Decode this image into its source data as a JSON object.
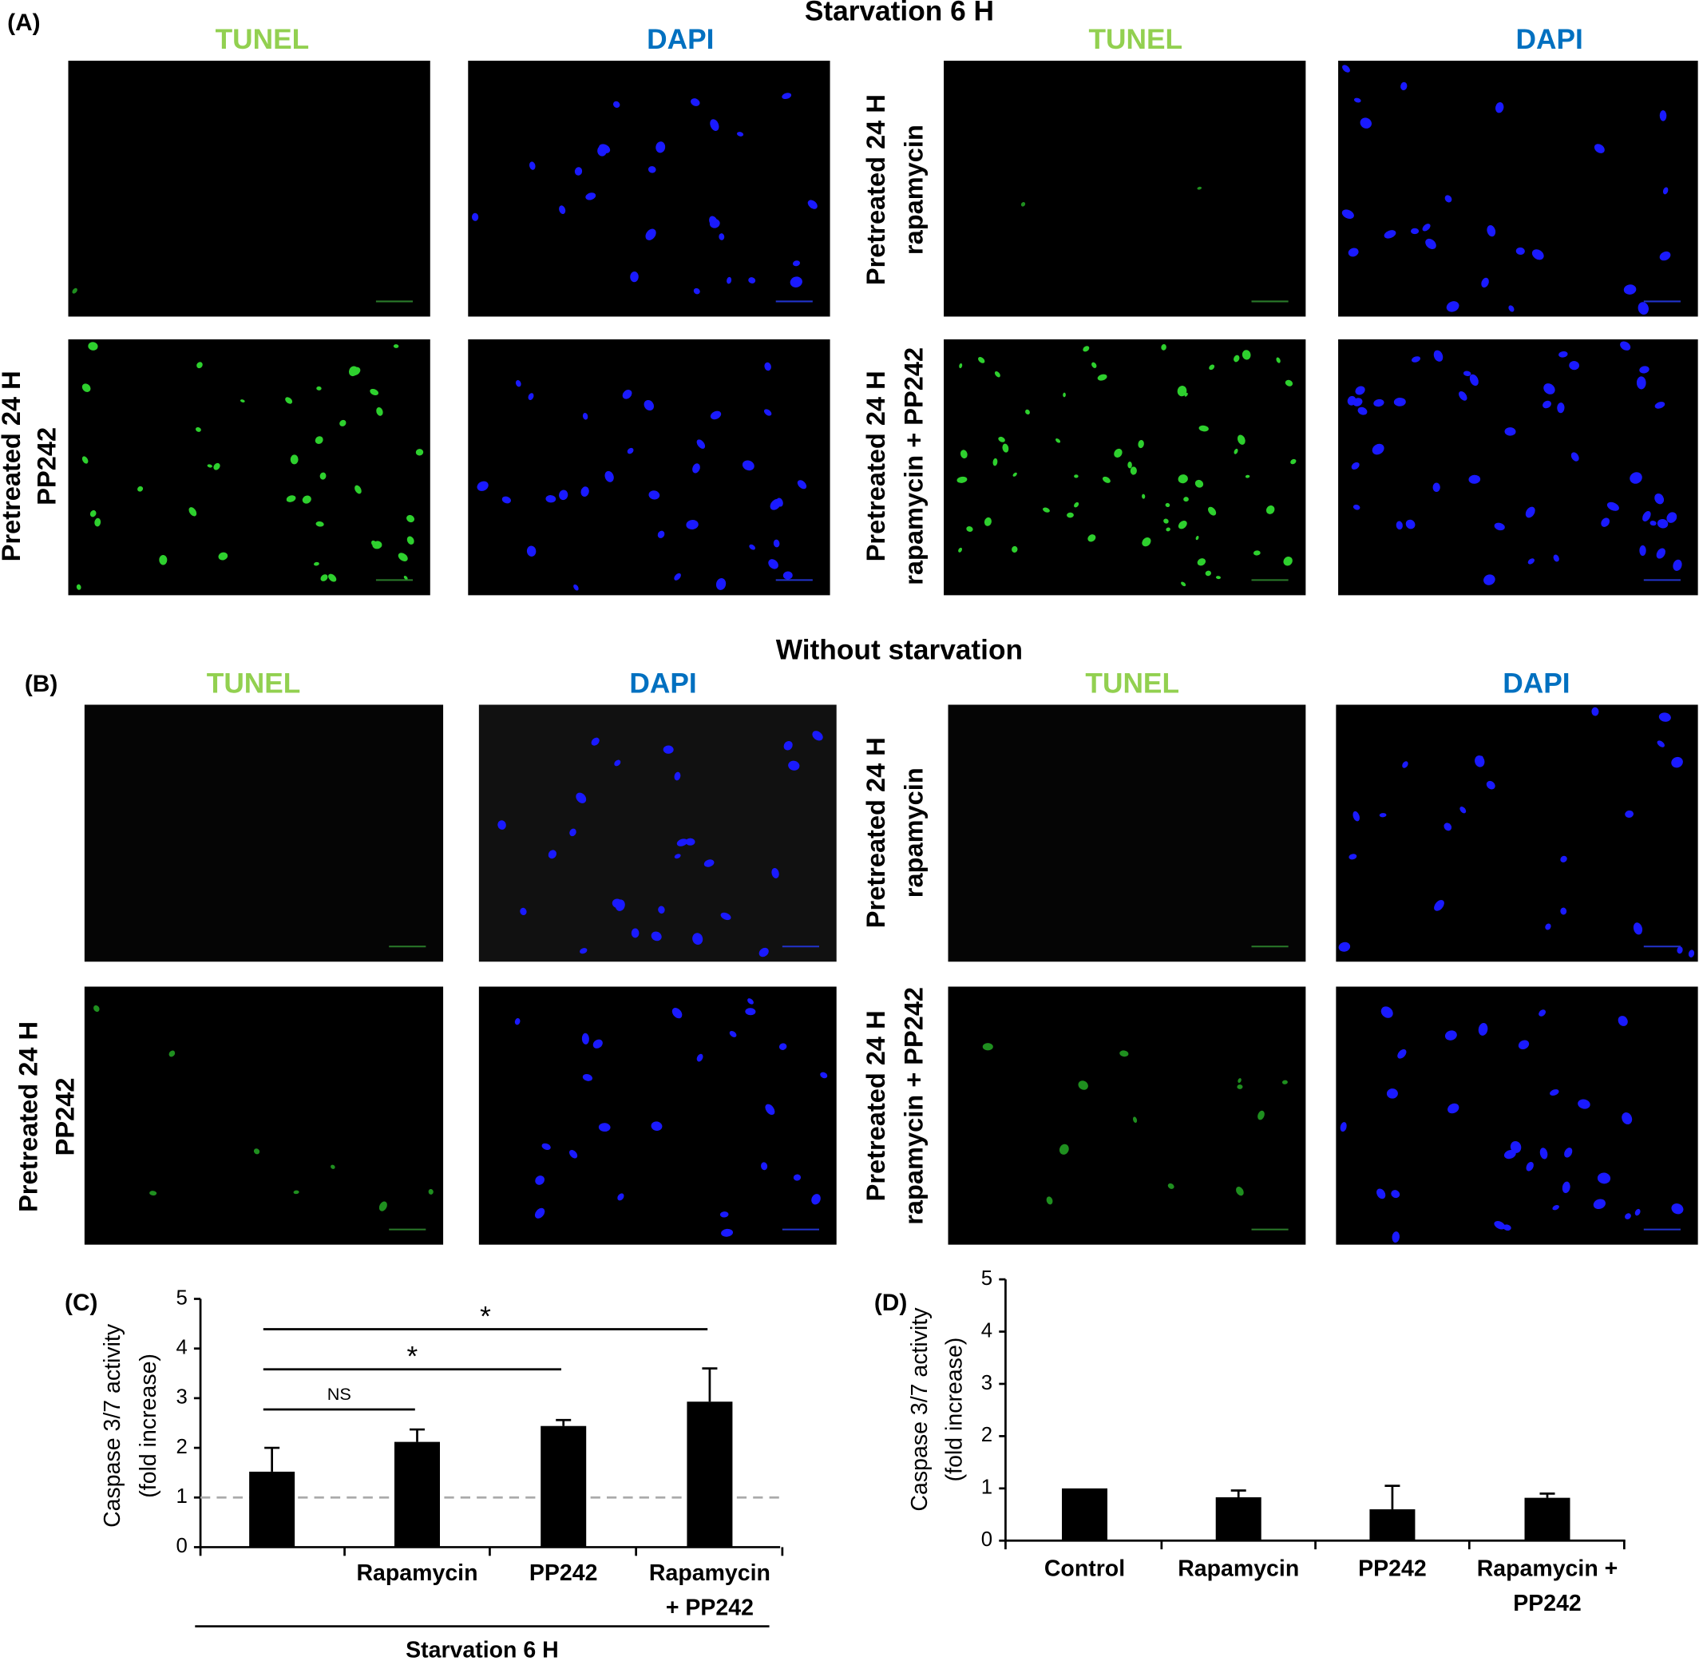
{
  "panels": [
    {
      "label": "(A)",
      "title": "Starvation 6 H",
      "columns": [
        "TUNEL",
        "DAPI",
        "TUNEL",
        "DAPI"
      ],
      "row_labels": [
        [
          "Pretreated 24 H",
          "rapamycin"
        ],
        [
          "Pretreated 24 H",
          "PP242"
        ],
        [
          "Pretreated 24 H",
          "rapamycin + PP242"
        ]
      ]
    },
    {
      "label": "(B)",
      "title": "Without starvation",
      "columns": [
        "TUNEL",
        "DAPI",
        "TUNEL",
        "DAPI"
      ],
      "row_labels": [
        [
          "Pretreated 24 H",
          "rapamycin"
        ],
        [
          "Pretreated 24 H",
          "PP242"
        ],
        [
          "Pretreated 24 H",
          "rapamycin + PP242"
        ]
      ]
    }
  ],
  "chart_data": [
    {
      "type": "bar",
      "label": "(C)",
      "y_label": [
        "Caspase 3/7 activity",
        "(fold increase)"
      ],
      "categories": [
        null,
        "Rapamycin",
        "PP242",
        [
          "Rapamycin",
          "+ PP242"
        ]
      ],
      "values": [
        1.52,
        2.12,
        2.44,
        2.93
      ],
      "errors": [
        0.48,
        0.25,
        0.12,
        0.67
      ],
      "color": "#000000",
      "ylim": [
        0,
        5
      ],
      "yticks": [
        0,
        1,
        2,
        3,
        4,
        5
      ],
      "reference_line": 1,
      "significance": [
        {
          "text": "NS",
          "from": 0,
          "to": 1
        },
        {
          "text": "*",
          "from": 0,
          "to": 2
        },
        {
          "text": "*",
          "from": 0,
          "to": 3
        }
      ],
      "group_label": "Starvation 6 H"
    },
    {
      "type": "bar",
      "label": "(D)",
      "y_label": [
        "Caspase 3/7 activity",
        "(fold increase)"
      ],
      "categories": [
        "Control",
        "Rapamycin",
        "PP242",
        [
          "Rapamycin +",
          "PP242"
        ]
      ],
      "values": [
        1.0,
        0.83,
        0.6,
        0.82
      ],
      "errors": [
        0,
        0.13,
        0.45,
        0.08
      ],
      "color": "#000000",
      "ylim": [
        0,
        5
      ],
      "yticks": [
        0,
        1,
        2,
        3,
        4,
        5
      ]
    }
  ]
}
